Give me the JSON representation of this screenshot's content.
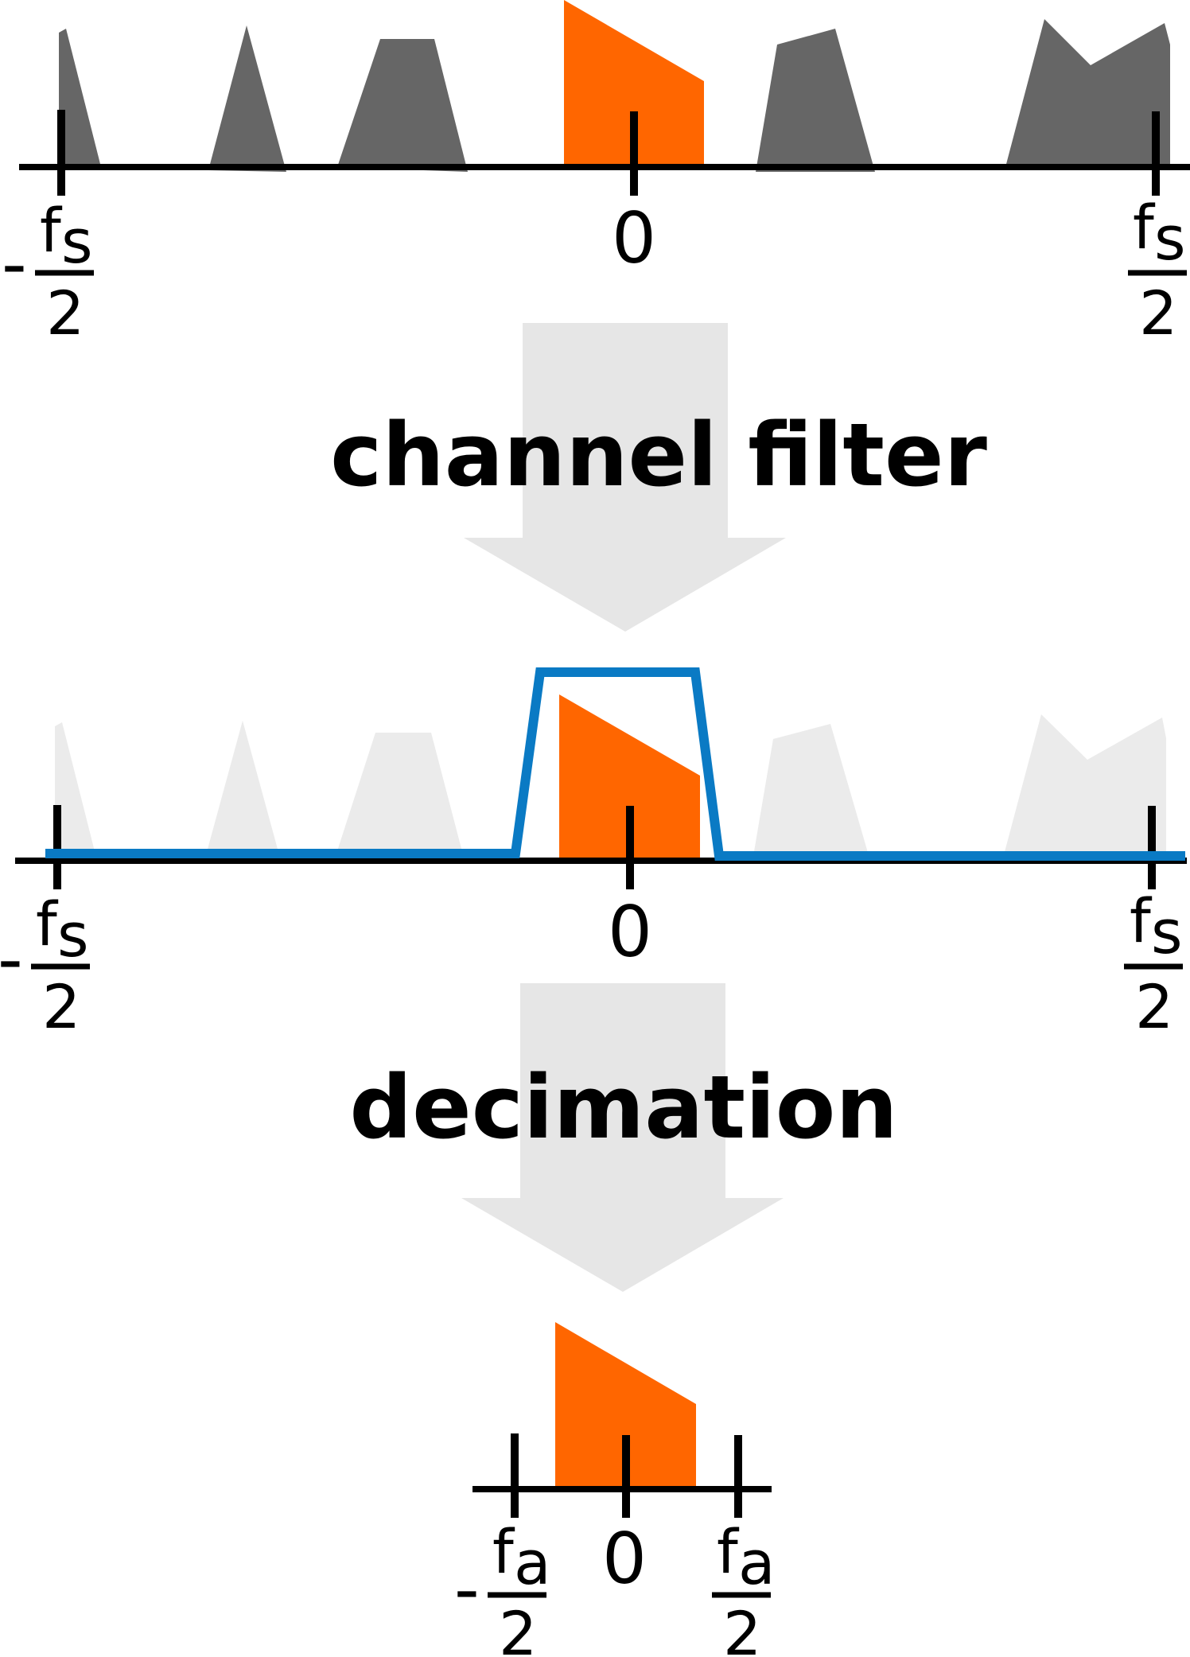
{
  "colors": {
    "signal": "#ff6600",
    "interferer": "#666666",
    "interferer_faded": "#ebebeb",
    "filter": "#0a7ac4",
    "arrow": "#e6e6e6",
    "axis": "#000000"
  },
  "stages": {
    "step1": "channel filter",
    "step2": "decimation"
  },
  "panels": {
    "original": {
      "neg_edge": {
        "sign": "-",
        "num": "f",
        "sub": "s",
        "den": "2"
      },
      "center": "0",
      "pos_edge": {
        "num": "f",
        "sub": "s",
        "den": "2"
      }
    },
    "filtered": {
      "neg_edge": {
        "sign": "-",
        "num": "f",
        "sub": "s",
        "den": "2"
      },
      "center": "0",
      "pos_edge": {
        "num": "f",
        "sub": "s",
        "den": "2"
      }
    },
    "decimated": {
      "neg_edge": {
        "sign": "-",
        "num": "f",
        "sub": "a",
        "den": "2"
      },
      "center": "0",
      "pos_edge": {
        "num": "f",
        "sub": "a",
        "den": "2"
      }
    }
  }
}
